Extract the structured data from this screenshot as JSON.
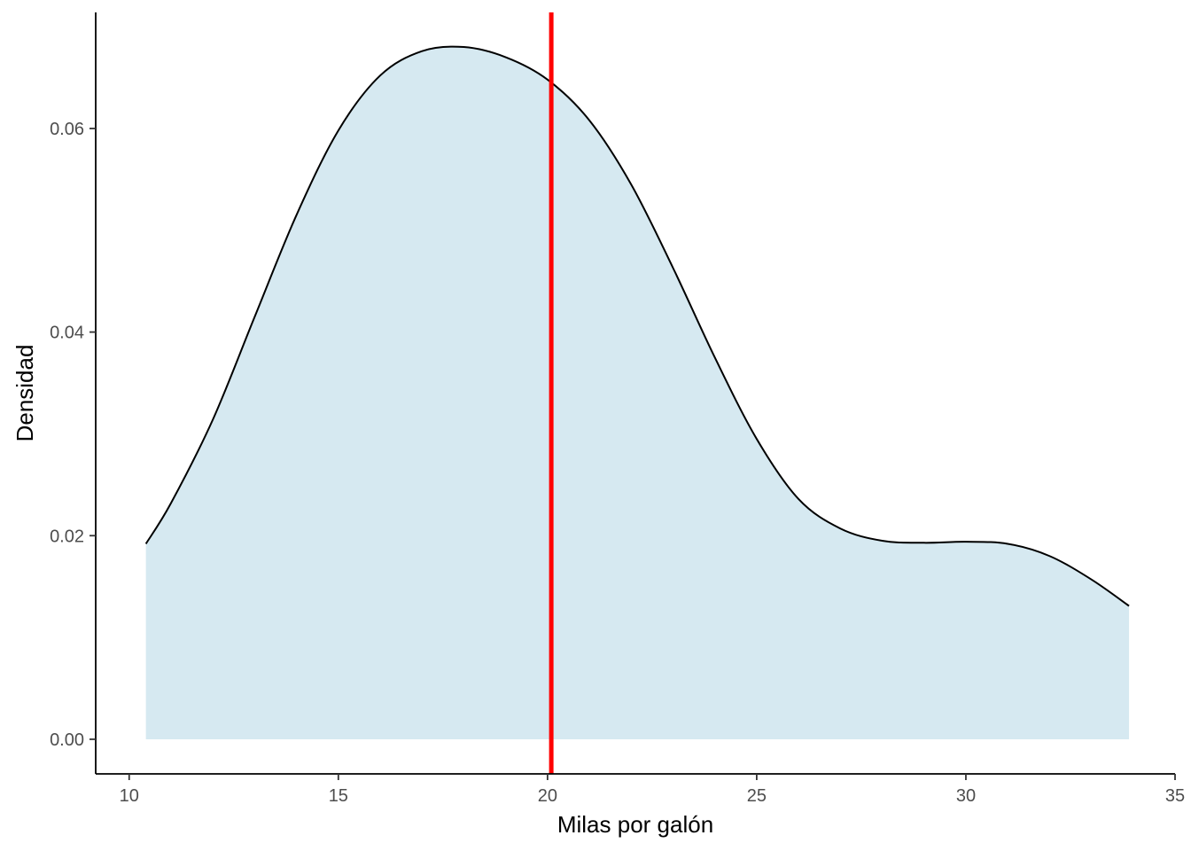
{
  "chart_data": {
    "type": "area",
    "subtype": "density",
    "xlabel": "Milas por galón",
    "ylabel": "Densidad",
    "xlim": [
      9.2,
      35.0
    ],
    "ylim": [
      -0.0034,
      0.0714
    ],
    "x_ticks": [
      10,
      15,
      20,
      25,
      30,
      35
    ],
    "x_tick_labels": [
      "10",
      "15",
      "20",
      "25",
      "30",
      "35"
    ],
    "y_ticks": [
      0.0,
      0.02,
      0.04,
      0.06
    ],
    "y_tick_labels": [
      "0.00",
      "0.02",
      "0.04",
      "0.06"
    ],
    "grid": false,
    "fill_color": "#d6e9f1",
    "line_color": "#000000",
    "series": [
      {
        "x": [
          10.4,
          11.0,
          12.0,
          13.0,
          14.0,
          15.0,
          16.0,
          17.0,
          18.0,
          19.0,
          20.0,
          21.0,
          22.0,
          23.0,
          24.0,
          25.0,
          26.0,
          27.0,
          28.0,
          29.0,
          30.0,
          31.0,
          32.0,
          33.0,
          33.9
        ],
        "y": [
          0.0192,
          0.0232,
          0.0314,
          0.0415,
          0.0515,
          0.0598,
          0.0652,
          0.0676,
          0.068,
          0.067,
          0.0648,
          0.0608,
          0.0545,
          0.0463,
          0.0375,
          0.0295,
          0.0236,
          0.0207,
          0.0195,
          0.0193,
          0.0194,
          0.0192,
          0.018,
          0.0157,
          0.0131
        ]
      }
    ],
    "vline": {
      "x": 20.09,
      "color": "#ff0000"
    }
  }
}
